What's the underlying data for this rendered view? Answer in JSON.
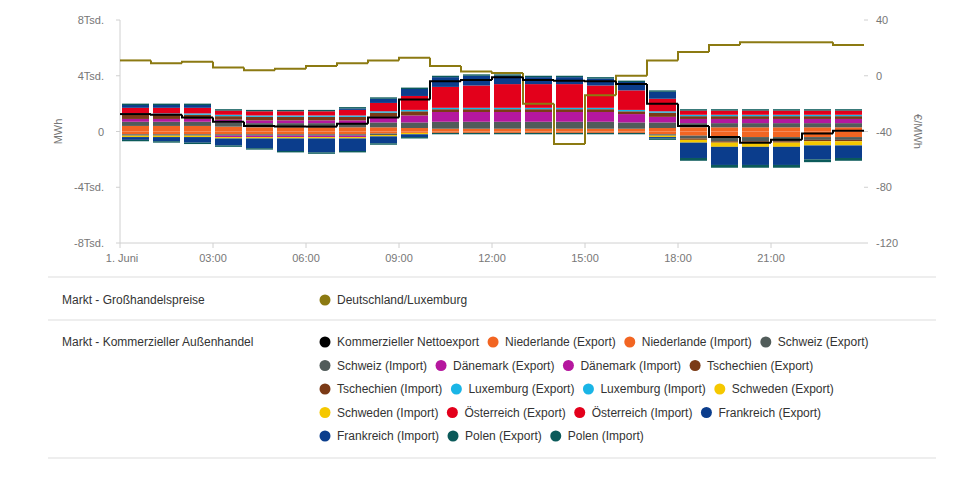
{
  "chart_data": {
    "type": "bar",
    "stacked": true,
    "grid": false,
    "legend": "bottom",
    "ylabel": "MWh",
    "y2label": "€/MWh",
    "legend_titles": [
      "Markt - Großhandelspreise",
      "Markt - Kommerzieller Außenhandel"
    ],
    "x": [
      0,
      1,
      2,
      3,
      4,
      5,
      6,
      7,
      8,
      9,
      10,
      11,
      12,
      13,
      14,
      15,
      16,
      17,
      18,
      19,
      20,
      21,
      22,
      23
    ],
    "xlim": [
      0,
      24
    ],
    "xticks": [
      {
        "value": 0,
        "label": "1. Juni"
      },
      {
        "value": 3,
        "label": "03:00"
      },
      {
        "value": 6,
        "label": "06:00"
      },
      {
        "value": 9,
        "label": "09:00"
      },
      {
        "value": 12,
        "label": "12:00"
      },
      {
        "value": 15,
        "label": "15:00"
      },
      {
        "value": 18,
        "label": "18:00"
      },
      {
        "value": 21,
        "label": "21:00"
      }
    ],
    "ylim": [
      -8000,
      8000
    ],
    "yticks": [
      {
        "value": -8000,
        "label": "-8Tsd."
      },
      {
        "value": -4000,
        "label": "-4Tsd."
      },
      0,
      {
        "value": 4000,
        "label": "4Tsd."
      },
      {
        "value": 8000,
        "label": "8Tsd."
      }
    ],
    "y2lim": [
      -120,
      40
    ],
    "y2ticks": [
      -120,
      -80,
      -40,
      0,
      40
    ],
    "series": [
      {
        "name": "Deutschland/Luxemburg",
        "type": "line",
        "axis": "y2",
        "color": "#8c7a12",
        "values": [
          11,
          9,
          10,
          6,
          4,
          5,
          7,
          9,
          11,
          13,
          7,
          3,
          2,
          -20,
          -49,
          -14,
          0,
          11,
          17,
          22,
          24,
          24,
          24,
          22
        ]
      },
      {
        "name": "Kommerzieller Nettoexport",
        "type": "line",
        "color": "#000000",
        "values": [
          1250,
          1200,
          1000,
          700,
          400,
          350,
          350,
          550,
          1000,
          2300,
          3600,
          3700,
          3900,
          3700,
          3650,
          3600,
          3400,
          2000,
          400,
          -400,
          -800,
          -600,
          -150,
          50
        ]
      },
      {
        "name": "Niederlande (Export)",
        "type": "bar",
        "color": "#f26522",
        "values": [
          400,
          400,
          400,
          350,
          300,
          300,
          300,
          300,
          300,
          250,
          200,
          200,
          200,
          200,
          200,
          200,
          200,
          250,
          300,
          300,
          300,
          300,
          300,
          300
        ]
      },
      {
        "name": "Niederlande (Import)",
        "type": "bar",
        "color": "#f26522",
        "values": [
          -200,
          -200,
          -200,
          -200,
          -200,
          -200,
          -200,
          -200,
          -150,
          -100,
          -100,
          -100,
          -100,
          -100,
          -100,
          -100,
          -100,
          -200,
          -300,
          -400,
          -400,
          -400,
          -400,
          -400
        ]
      },
      {
        "name": "Schweiz (Export)",
        "type": "bar",
        "color": "#515c5a",
        "values": [
          300,
          300,
          300,
          300,
          300,
          300,
          300,
          300,
          350,
          400,
          500,
          500,
          500,
          500,
          500,
          500,
          450,
          400,
          300,
          300,
          300,
          300,
          300,
          300
        ]
      },
      {
        "name": "Schweiz (Import)",
        "type": "bar",
        "color": "#515c5a",
        "values": [
          -100,
          -100,
          -100,
          -100,
          -100,
          -100,
          -100,
          -100,
          -100,
          0,
          0,
          0,
          0,
          0,
          0,
          0,
          0,
          -100,
          -200,
          -300,
          -300,
          -300,
          -200,
          -200
        ]
      },
      {
        "name": "Dänemark (Export)",
        "type": "bar",
        "color": "#b5179e",
        "values": [
          200,
          200,
          200,
          200,
          200,
          200,
          200,
          200,
          400,
          500,
          700,
          700,
          700,
          700,
          700,
          700,
          600,
          400,
          300,
          300,
          300,
          300,
          300,
          300
        ]
      },
      {
        "name": "Dänemark (Import)",
        "type": "bar",
        "color": "#b5179e",
        "values": [
          0,
          0,
          0,
          -100,
          -100,
          -100,
          -100,
          -100,
          0,
          0,
          0,
          0,
          0,
          0,
          0,
          0,
          0,
          0,
          0,
          0,
          0,
          0,
          0,
          0
        ]
      },
      {
        "name": "Tschechien (Export)",
        "type": "bar",
        "color": "#7b3a16",
        "values": [
          300,
          300,
          300,
          250,
          250,
          250,
          250,
          250,
          300,
          300,
          200,
          200,
          200,
          200,
          200,
          200,
          200,
          300,
          200,
          200,
          200,
          200,
          200,
          200
        ]
      },
      {
        "name": "Tschechien (Import)",
        "type": "bar",
        "color": "#7b3a16",
        "values": [
          0,
          0,
          0,
          0,
          0,
          0,
          0,
          0,
          0,
          0,
          0,
          0,
          0,
          0,
          0,
          0,
          0,
          0,
          -100,
          -100,
          -100,
          -100,
          -100,
          -100
        ]
      },
      {
        "name": "Luxemburg (Export)",
        "type": "bar",
        "color": "#1ab5e6",
        "values": [
          100,
          100,
          100,
          100,
          100,
          100,
          100,
          100,
          100,
          100,
          100,
          100,
          100,
          100,
          100,
          100,
          100,
          100,
          100,
          100,
          100,
          100,
          100,
          100
        ]
      },
      {
        "name": "Luxemburg (Import)",
        "type": "bar",
        "color": "#1ab5e6",
        "values": [
          0,
          0,
          0,
          0,
          0,
          0,
          0,
          0,
          0,
          0,
          0,
          0,
          0,
          0,
          0,
          0,
          0,
          0,
          0,
          0,
          0,
          0,
          0,
          0
        ]
      },
      {
        "name": "Schweden (Export)",
        "type": "bar",
        "color": "#f5c800",
        "values": [
          0,
          0,
          0,
          0,
          0,
          0,
          0,
          0,
          0,
          0,
          0,
          0,
          0,
          0,
          0,
          0,
          0,
          0,
          0,
          0,
          0,
          0,
          0,
          0
        ]
      },
      {
        "name": "Schweden (Import)",
        "type": "bar",
        "color": "#f5c800",
        "values": [
          -100,
          -100,
          -100,
          -100,
          -100,
          -100,
          -100,
          -100,
          -100,
          -100,
          0,
          0,
          0,
          0,
          0,
          0,
          0,
          -100,
          -200,
          -300,
          -300,
          -300,
          -300,
          -300
        ]
      },
      {
        "name": "Österreich (Export)",
        "type": "bar",
        "color": "#e3001b",
        "values": [
          400,
          400,
          400,
          300,
          300,
          300,
          300,
          400,
          600,
          1000,
          1500,
          1600,
          1700,
          1700,
          1700,
          1600,
          1400,
          900,
          300,
          300,
          300,
          300,
          300,
          300
        ]
      },
      {
        "name": "Österreich (Import)",
        "type": "bar",
        "color": "#e3001b",
        "values": [
          0,
          0,
          0,
          0,
          0,
          0,
          0,
          0,
          0,
          0,
          0,
          0,
          0,
          0,
          0,
          0,
          0,
          0,
          0,
          0,
          0,
          0,
          0,
          0
        ]
      },
      {
        "name": "Frankreich (Export)",
        "type": "bar",
        "color": "#0b3d8c",
        "values": [
          200,
          200,
          200,
          0,
          0,
          0,
          0,
          100,
          300,
          500,
          700,
          700,
          600,
          500,
          500,
          500,
          600,
          500,
          0,
          0,
          0,
          0,
          0,
          0
        ]
      },
      {
        "name": "Frankreich (Import)",
        "type": "bar",
        "color": "#0b3d8c",
        "values": [
          -200,
          -300,
          -400,
          -500,
          -700,
          -900,
          -1000,
          -900,
          -500,
          -200,
          0,
          0,
          0,
          0,
          0,
          0,
          0,
          -100,
          -1100,
          -1300,
          -1300,
          -1300,
          -1000,
          -900
        ]
      },
      {
        "name": "Polen (Export)",
        "type": "bar",
        "color": "#0b5a5a",
        "values": [
          100,
          100,
          100,
          100,
          100,
          100,
          100,
          100,
          100,
          100,
          100,
          100,
          100,
          100,
          100,
          100,
          100,
          100,
          100,
          100,
          100,
          100,
          100,
          100
        ]
      },
      {
        "name": "Polen (Import)",
        "type": "bar",
        "color": "#0b5a5a",
        "values": [
          -100,
          -100,
          -100,
          -100,
          -100,
          -100,
          -100,
          -100,
          -100,
          -100,
          -100,
          -100,
          -100,
          -100,
          -100,
          -100,
          -100,
          -100,
          -200,
          -200,
          -200,
          -200,
          -200,
          -200
        ]
      }
    ]
  }
}
